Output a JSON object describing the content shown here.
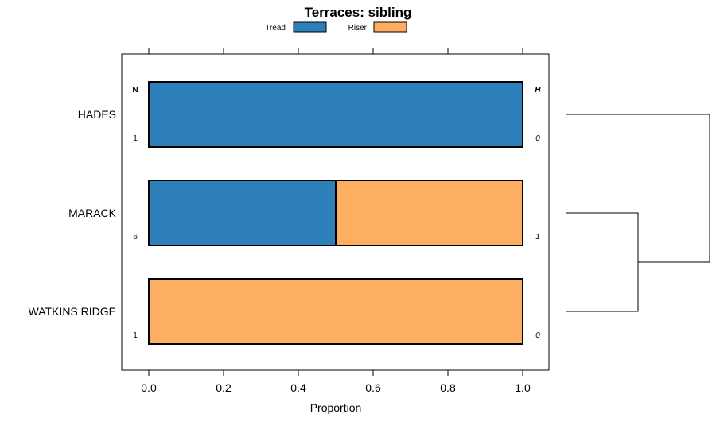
{
  "chart_data": {
    "type": "bar",
    "orientation": "horizontal",
    "stacked": true,
    "title": "Terraces: sibling",
    "xlabel": "Proportion",
    "ylabel": "",
    "xlim": [
      -0.07,
      1.07
    ],
    "x_ticks": [
      0.0,
      0.2,
      0.4,
      0.6,
      0.8,
      1.0
    ],
    "x_tick_labels": [
      "0.0",
      "0.2",
      "0.4",
      "0.6",
      "0.8",
      "1.0"
    ],
    "categories": [
      "HADES",
      "MARACK",
      "WATKINS RIDGE"
    ],
    "series": [
      {
        "name": "Tread",
        "color": "#2c7fb8",
        "values": [
          1.0,
          0.5,
          0.0
        ]
      },
      {
        "name": "Riser",
        "color": "#fdae61",
        "values": [
          0.0,
          0.5,
          1.0
        ]
      }
    ],
    "left_column_header": "N",
    "right_column_header": "H",
    "n_values": [
      "1",
      "6",
      "1"
    ],
    "h_values": [
      "0",
      "1",
      "0"
    ],
    "legend_position": "top",
    "dendrogram": {
      "description": "HADES joins the cluster of MARACK and WATKINS RIDGE",
      "merges": [
        {
          "members": [
            "MARACK",
            "WATKINS RIDGE"
          ],
          "height": 0.45
        },
        {
          "members": [
            "HADES",
            "MARACK+WATKINS RIDGE"
          ],
          "height": 1.0
        }
      ]
    }
  }
}
